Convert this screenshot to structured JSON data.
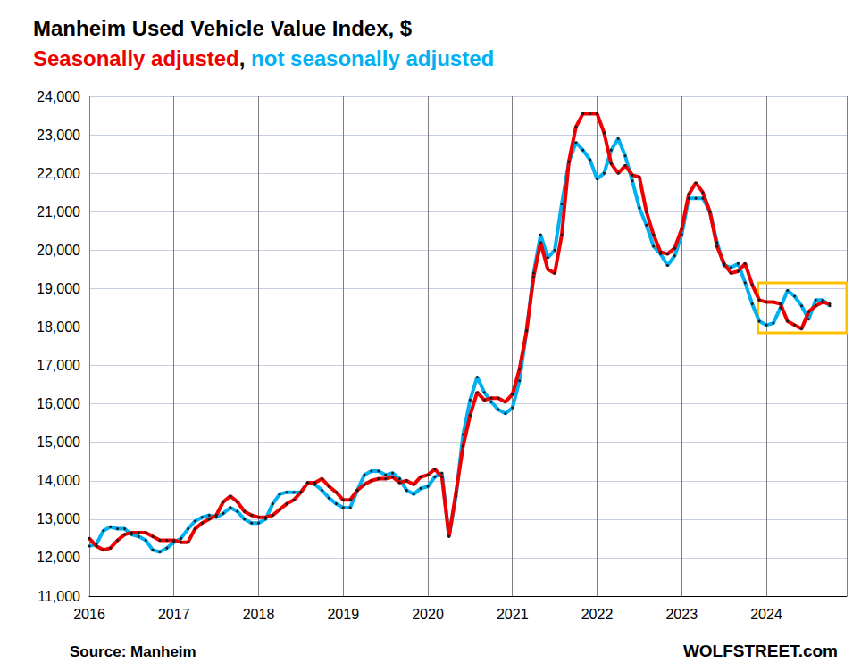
{
  "chart_data": {
    "type": "line",
    "title": "Manheim Used Vehicle Value Index, $",
    "subtitle": "Seasonally adjusted, not seasonally adjusted",
    "x": [
      2016,
      2016.083,
      2016.167,
      2016.25,
      2016.333,
      2016.417,
      2016.5,
      2016.583,
      2016.667,
      2016.75,
      2016.833,
      2016.917,
      2017,
      2017.083,
      2017.167,
      2017.25,
      2017.333,
      2017.417,
      2017.5,
      2017.583,
      2017.667,
      2017.75,
      2017.833,
      2017.917,
      2018,
      2018.083,
      2018.167,
      2018.25,
      2018.333,
      2018.417,
      2018.5,
      2018.583,
      2018.667,
      2018.75,
      2018.833,
      2018.917,
      2019,
      2019.083,
      2019.167,
      2019.25,
      2019.333,
      2019.417,
      2019.5,
      2019.583,
      2019.667,
      2019.75,
      2019.833,
      2019.917,
      2020,
      2020.083,
      2020.167,
      2020.25,
      2020.333,
      2020.417,
      2020.5,
      2020.583,
      2020.667,
      2020.75,
      2020.833,
      2020.917,
      2021,
      2021.083,
      2021.167,
      2021.25,
      2021.333,
      2021.417,
      2021.5,
      2021.583,
      2021.667,
      2021.75,
      2021.833,
      2021.917,
      2022,
      2022.083,
      2022.167,
      2022.25,
      2022.333,
      2022.417,
      2022.5,
      2022.583,
      2022.667,
      2022.75,
      2022.833,
      2022.917,
      2023,
      2023.083,
      2023.167,
      2023.25,
      2023.333,
      2023.417,
      2023.5,
      2023.583,
      2023.667,
      2023.75,
      2023.833,
      2023.917,
      2024,
      2024.083,
      2024.167,
      2024.25,
      2024.333,
      2024.417,
      2024.5,
      2024.583,
      2024.667,
      2024.75
    ],
    "series": [
      {
        "name": "not seasonally adjusted",
        "color": "#00b0f0",
        "values": [
          12300,
          12350,
          12700,
          12800,
          12750,
          12750,
          12600,
          12550,
          12450,
          12200,
          12150,
          12250,
          12400,
          12500,
          12750,
          12950,
          13050,
          13100,
          13050,
          13150,
          13300,
          13200,
          13000,
          12900,
          12900,
          13000,
          13400,
          13650,
          13700,
          13700,
          13700,
          13950,
          13900,
          13750,
          13550,
          13400,
          13300,
          13300,
          13750,
          14150,
          14250,
          14250,
          14150,
          14200,
          14050,
          13750,
          13650,
          13800,
          13850,
          14100,
          14200,
          12550,
          13600,
          15200,
          16100,
          16700,
          16300,
          16050,
          15850,
          15750,
          15900,
          16600,
          17900,
          19400,
          20400,
          19800,
          20000,
          21200,
          22300,
          22800,
          22600,
          22350,
          21850,
          22000,
          22600,
          22900,
          22450,
          21800,
          21100,
          20650,
          20100,
          19900,
          19600,
          19850,
          20400,
          21350,
          21350,
          21350,
          21000,
          20200,
          19600,
          19550,
          19650,
          19150,
          18600,
          18150,
          18050,
          18100,
          18500,
          18950,
          18800,
          18550,
          18200,
          18700,
          18700,
          18550
        ]
      },
      {
        "name": "Seasonally adjusted",
        "color": "#ee0000",
        "values": [
          12500,
          12300,
          12200,
          12250,
          12450,
          12600,
          12650,
          12650,
          12650,
          12550,
          12450,
          12450,
          12450,
          12400,
          12400,
          12750,
          12900,
          13000,
          13100,
          13450,
          13600,
          13450,
          13200,
          13100,
          13050,
          13050,
          13100,
          13250,
          13400,
          13500,
          13700,
          13950,
          13950,
          14050,
          13850,
          13700,
          13500,
          13500,
          13750,
          13900,
          14000,
          14050,
          14050,
          14100,
          13950,
          14000,
          13900,
          14100,
          14150,
          14300,
          14100,
          12550,
          13700,
          14900,
          15700,
          16300,
          16100,
          16150,
          16150,
          16050,
          16250,
          16900,
          17900,
          19300,
          20200,
          19500,
          19400,
          20400,
          22300,
          23200,
          23550,
          23550,
          23550,
          23050,
          22250,
          22000,
          22200,
          21950,
          21900,
          21000,
          20400,
          19950,
          19900,
          20050,
          20550,
          21450,
          21750,
          21500,
          21000,
          20100,
          19650,
          19400,
          19450,
          19650,
          19100,
          18700,
          18650,
          18650,
          18600,
          18150,
          18050,
          17950,
          18400,
          18550,
          18650,
          18600
        ]
      }
    ],
    "xlim": [
      2016,
      2024.95
    ],
    "xticks": [
      2016,
      2017,
      2018,
      2019,
      2020,
      2021,
      2022,
      2023,
      2024
    ],
    "ylim": [
      11000,
      24000
    ],
    "yticks": [
      {
        "value": 11000,
        "label": "11,000"
      },
      {
        "value": 12000,
        "label": "12,000"
      },
      {
        "value": 13000,
        "label": "13,000"
      },
      {
        "value": 14000,
        "label": "14,000"
      },
      {
        "value": 15000,
        "label": "15,000"
      },
      {
        "value": 16000,
        "label": "16,000"
      },
      {
        "value": 17000,
        "label": "17,000"
      },
      {
        "value": 18000,
        "label": "18,000"
      },
      {
        "value": 19000,
        "label": "19,000"
      },
      {
        "value": 20000,
        "label": "20,000"
      },
      {
        "value": 21000,
        "label": "21,000"
      },
      {
        "value": 22000,
        "label": "22,000"
      },
      {
        "value": 23000,
        "label": "23,000"
      },
      {
        "value": 24000,
        "label": "24,000"
      }
    ],
    "grid": true,
    "marker": "dot",
    "annotations": [
      {
        "text": "Source: Manheim"
      },
      {
        "text": "WOLFSTREET.com"
      },
      {
        "type": "box",
        "color": "#ffc000",
        "x": [
          2023.9,
          2024.95
        ],
        "y": [
          17850,
          19150
        ]
      }
    ]
  }
}
